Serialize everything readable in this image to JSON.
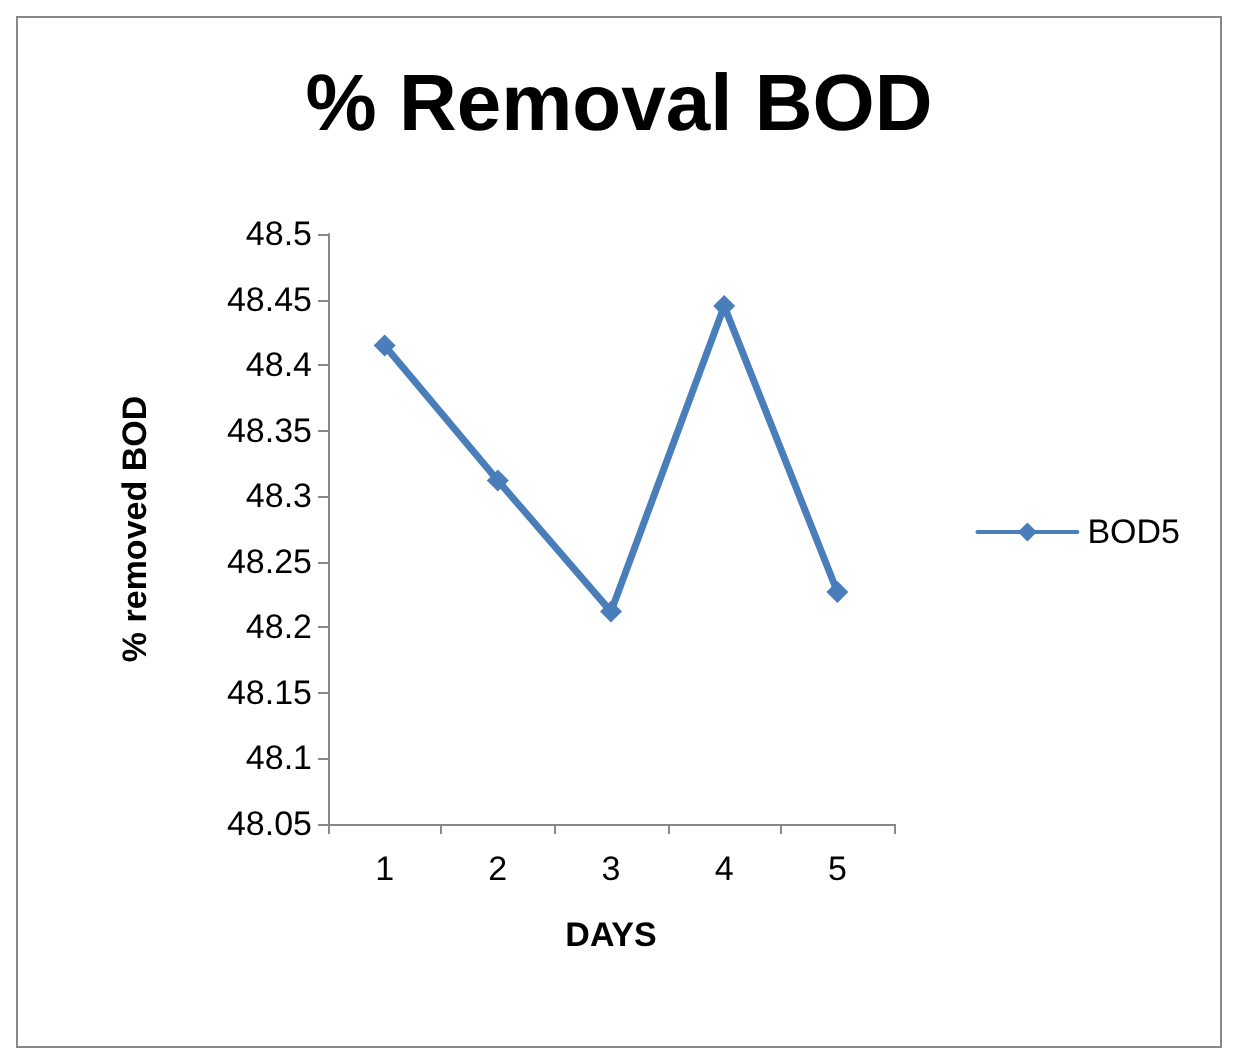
{
  "chart_data": {
    "type": "line",
    "title": "% Removal BOD",
    "xlabel": "DAYS",
    "ylabel": "% removed BOD",
    "categories": [
      "1",
      "2",
      "3",
      "4",
      "5"
    ],
    "series": [
      {
        "name": "BOD5",
        "color": "#4a7ebb",
        "values": [
          48.415,
          48.312,
          48.212,
          48.445,
          48.227
        ]
      }
    ],
    "ylim": [
      48.05,
      48.5
    ],
    "yticks": [
      48.05,
      48.1,
      48.15,
      48.2,
      48.25,
      48.3,
      48.35,
      48.4,
      48.45,
      48.5
    ],
    "grid": false,
    "legend": "right",
    "marker": "diamond",
    "line_style": "solid"
  }
}
